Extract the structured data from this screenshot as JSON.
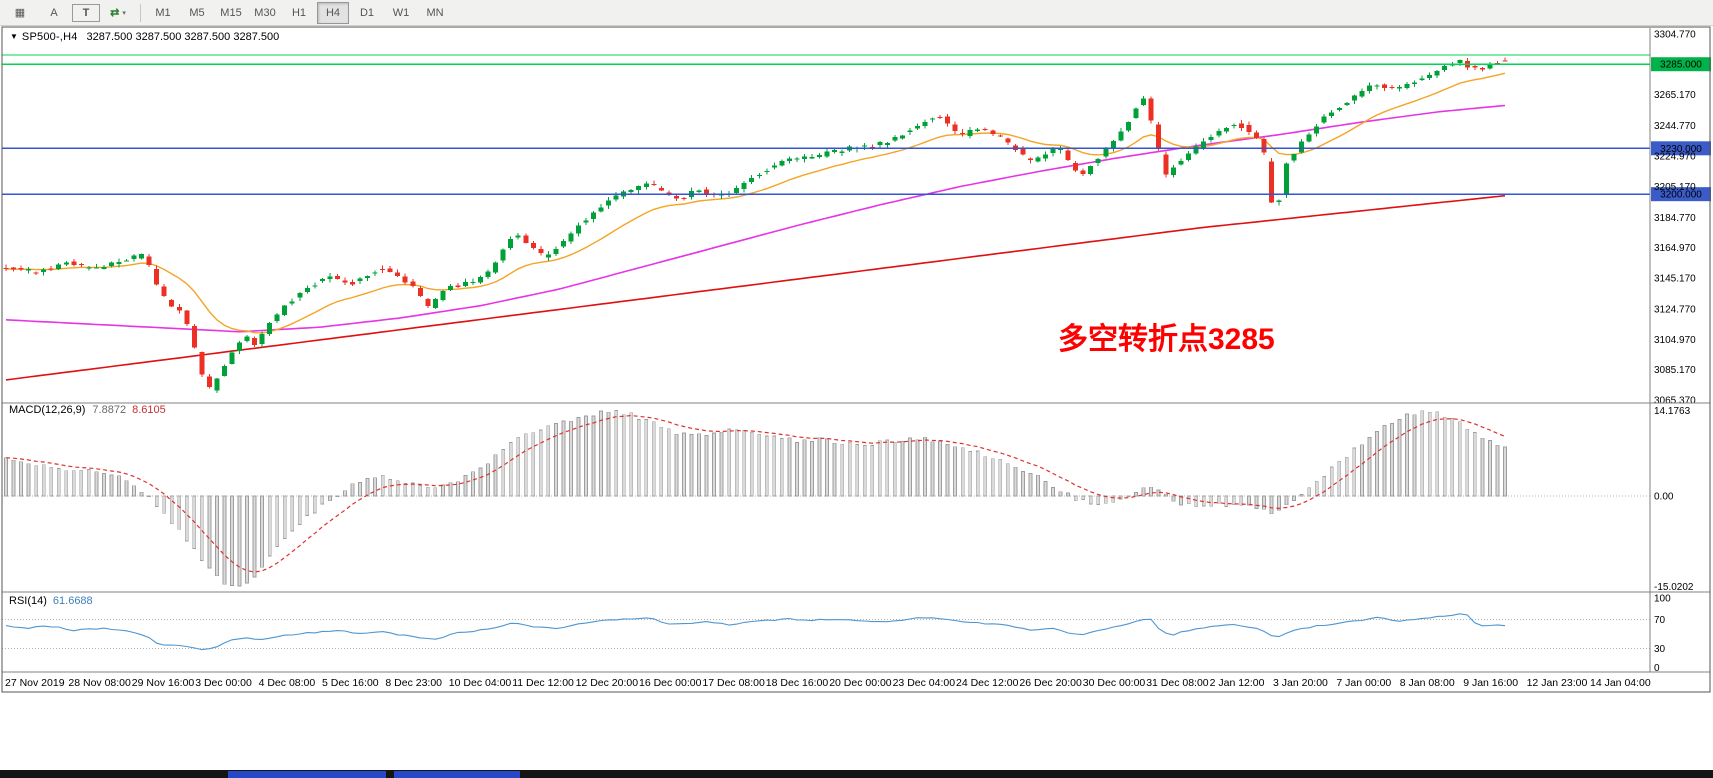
{
  "toolbar": {
    "tools": [
      {
        "name": "grid-icon",
        "glyph": "▦"
      },
      {
        "name": "cursor-a-tool",
        "glyph": "A"
      },
      {
        "name": "text-tool",
        "glyph": "T",
        "boxed": true
      },
      {
        "name": "cycle-tool",
        "glyph": "⇄",
        "caret": "▾"
      }
    ],
    "timeframes": [
      "M1",
      "M5",
      "M15",
      "M30",
      "H1",
      "H4",
      "D1",
      "W1",
      "MN"
    ],
    "active_timeframe": "H4"
  },
  "chart": {
    "collapse_glyph": "▼",
    "title_symbol": "SP500-,H4",
    "title_ohlc": "3287.500 3287.500 3287.500 3287.500",
    "annotation": "多空转折点3285"
  },
  "macd_panel": {
    "label": "MACD(12,26,9)",
    "value_macd": "7.8872",
    "value_signal": "8.6105",
    "axis_max": "14.1763",
    "axis_zero": "0.00",
    "axis_min": "-15.0202"
  },
  "rsi_panel": {
    "label": "RSI(14)",
    "value": "61.6688",
    "axis": [
      "100",
      "70",
      "30",
      "0"
    ]
  },
  "colors": {
    "up": "#00A138",
    "down": "#EC3024",
    "ma_fast": "#F5A423",
    "ma_mid": "#E535E5",
    "ma_slow": "#E01010",
    "macd_hist_fill": "#DADADA",
    "macd_hist_stroke": "#9E9E9E",
    "macd_signal": "#E03030",
    "rsi_line": "#4D96D2",
    "line_green": "#00D453",
    "line_blue": "#3355D4",
    "badge_green": "#00B24A",
    "badge_blue": "#3A5BC8",
    "separator": "#808080",
    "level_dotted": "#B4B4B4",
    "annotation": "#FF0000"
  },
  "chart_data": {
    "type": "candlestick",
    "symbol": "SP500-",
    "timeframe": "H4",
    "bars": 200,
    "price_min": 3065.37,
    "price_max": 3304.77,
    "last_close": 3287.5,
    "price_axis_ticks": [
      "3304.770",
      "3265.170",
      "3244.770",
      "3224.970",
      "3205.170",
      "3184.770",
      "3164.970",
      "3145.170",
      "3124.770",
      "3104.970",
      "3085.170",
      "3065.370"
    ],
    "hlines": [
      {
        "price": 3291.0,
        "color": "green"
      },
      {
        "price": 3285.0,
        "color": "green",
        "badge": "3285.000"
      },
      {
        "price": 3230.0,
        "color": "blue",
        "badge": "3230.000"
      },
      {
        "price": 3200.0,
        "color": "blue",
        "badge": "3200.000"
      }
    ],
    "price_path": [
      [
        0,
        3153
      ],
      [
        40,
        3149
      ],
      [
        70,
        3155
      ],
      [
        100,
        3151
      ],
      [
        130,
        3158
      ],
      [
        148,
        3160
      ],
      [
        160,
        3140
      ],
      [
        172,
        3128
      ],
      [
        186,
        3124
      ],
      [
        198,
        3098
      ],
      [
        208,
        3076
      ],
      [
        214,
        3072
      ],
      [
        222,
        3082
      ],
      [
        236,
        3096
      ],
      [
        248,
        3108
      ],
      [
        258,
        3100
      ],
      [
        272,
        3115
      ],
      [
        290,
        3128
      ],
      [
        310,
        3138
      ],
      [
        330,
        3147
      ],
      [
        352,
        3141
      ],
      [
        368,
        3146
      ],
      [
        385,
        3152
      ],
      [
        400,
        3146
      ],
      [
        415,
        3140
      ],
      [
        432,
        3126
      ],
      [
        448,
        3138
      ],
      [
        465,
        3141
      ],
      [
        480,
        3144
      ],
      [
        495,
        3151
      ],
      [
        508,
        3165
      ],
      [
        518,
        3174
      ],
      [
        532,
        3168
      ],
      [
        548,
        3158
      ],
      [
        565,
        3168
      ],
      [
        582,
        3180
      ],
      [
        600,
        3190
      ],
      [
        618,
        3198
      ],
      [
        636,
        3204
      ],
      [
        652,
        3207
      ],
      [
        668,
        3200
      ],
      [
        682,
        3196
      ],
      [
        700,
        3203
      ],
      [
        718,
        3199
      ],
      [
        736,
        3202
      ],
      [
        755,
        3211
      ],
      [
        775,
        3218
      ],
      [
        792,
        3223
      ],
      [
        812,
        3224
      ],
      [
        832,
        3227
      ],
      [
        852,
        3230
      ],
      [
        872,
        3231
      ],
      [
        892,
        3235
      ],
      [
        912,
        3241
      ],
      [
        930,
        3249
      ],
      [
        945,
        3251
      ],
      [
        962,
        3238
      ],
      [
        980,
        3243
      ],
      [
        1000,
        3239
      ],
      [
        1018,
        3230
      ],
      [
        1032,
        3221
      ],
      [
        1048,
        3226
      ],
      [
        1062,
        3231
      ],
      [
        1075,
        3218
      ],
      [
        1085,
        3211
      ],
      [
        1098,
        3222
      ],
      [
        1112,
        3230
      ],
      [
        1126,
        3242
      ],
      [
        1140,
        3258
      ],
      [
        1148,
        3263
      ],
      [
        1158,
        3240
      ],
      [
        1168,
        3212
      ],
      [
        1180,
        3220
      ],
      [
        1195,
        3228
      ],
      [
        1210,
        3236
      ],
      [
        1226,
        3243
      ],
      [
        1240,
        3246
      ],
      [
        1254,
        3241
      ],
      [
        1266,
        3232
      ],
      [
        1274,
        3196
      ],
      [
        1280,
        3188
      ],
      [
        1288,
        3218
      ],
      [
        1300,
        3230
      ],
      [
        1315,
        3242
      ],
      [
        1330,
        3252
      ],
      [
        1345,
        3258
      ],
      [
        1362,
        3266
      ],
      [
        1378,
        3272
      ],
      [
        1392,
        3268
      ],
      [
        1408,
        3271
      ],
      [
        1424,
        3276
      ],
      [
        1438,
        3280
      ],
      [
        1452,
        3285
      ],
      [
        1462,
        3289
      ],
      [
        1472,
        3283
      ],
      [
        1484,
        3281
      ],
      [
        1494,
        3286
      ],
      [
        1505,
        3287.5
      ]
    ],
    "ma_mid_path": [
      [
        0,
        3118
      ],
      [
        120,
        3114
      ],
      [
        240,
        3110
      ],
      [
        320,
        3113
      ],
      [
        400,
        3119
      ],
      [
        480,
        3127
      ],
      [
        560,
        3138
      ],
      [
        640,
        3152
      ],
      [
        720,
        3166
      ],
      [
        800,
        3180
      ],
      [
        880,
        3193
      ],
      [
        960,
        3205
      ],
      [
        1040,
        3215
      ],
      [
        1120,
        3224
      ],
      [
        1200,
        3232
      ],
      [
        1280,
        3239
      ],
      [
        1360,
        3247
      ],
      [
        1440,
        3254
      ],
      [
        1505,
        3258
      ]
    ],
    "ma_slow_path": [
      [
        0,
        3078
      ],
      [
        300,
        3103
      ],
      [
        600,
        3128
      ],
      [
        900,
        3153
      ],
      [
        1200,
        3178
      ],
      [
        1505,
        3199
      ]
    ],
    "macd": {
      "max": 14.1763,
      "min": -15.0202,
      "path": [
        [
          0,
          6.5
        ],
        [
          30,
          5.5
        ],
        [
          60,
          4.5
        ],
        [
          90,
          4
        ],
        [
          120,
          3
        ],
        [
          145,
          0.5
        ],
        [
          165,
          -3
        ],
        [
          185,
          -7
        ],
        [
          205,
          -11
        ],
        [
          225,
          -14.5
        ],
        [
          240,
          -15
        ],
        [
          255,
          -13
        ],
        [
          270,
          -10
        ],
        [
          285,
          -7
        ],
        [
          300,
          -4.5
        ],
        [
          315,
          -2.5
        ],
        [
          330,
          -0.5
        ],
        [
          345,
          1
        ],
        [
          360,
          2.5
        ],
        [
          375,
          3.2
        ],
        [
          390,
          3
        ],
        [
          405,
          2.2
        ],
        [
          420,
          1.6
        ],
        [
          435,
          1.4
        ],
        [
          450,
          2
        ],
        [
          465,
          3
        ],
        [
          480,
          4.5
        ],
        [
          495,
          6.5
        ],
        [
          510,
          8.5
        ],
        [
          525,
          10
        ],
        [
          540,
          11
        ],
        [
          555,
          12
        ],
        [
          570,
          12.5
        ],
        [
          585,
          13.2
        ],
        [
          600,
          13.8
        ],
        [
          615,
          14
        ],
        [
          630,
          13.5
        ],
        [
          645,
          12.5
        ],
        [
          660,
          11.5
        ],
        [
          675,
          10.5
        ],
        [
          690,
          10
        ],
        [
          705,
          10.2
        ],
        [
          720,
          10.8
        ],
        [
          735,
          11
        ],
        [
          750,
          10.5
        ],
        [
          765,
          10
        ],
        [
          780,
          9.5
        ],
        [
          800,
          9
        ],
        [
          820,
          9.3
        ],
        [
          840,
          8.8
        ],
        [
          860,
          8.2
        ],
        [
          880,
          8.8
        ],
        [
          900,
          9.3
        ],
        [
          920,
          9.6
        ],
        [
          940,
          9
        ],
        [
          960,
          8
        ],
        [
          980,
          7
        ],
        [
          1000,
          6
        ],
        [
          1020,
          4.5
        ],
        [
          1040,
          3
        ],
        [
          1060,
          1
        ],
        [
          1075,
          -0.5
        ],
        [
          1090,
          -1.2
        ],
        [
          1105,
          -1.4
        ],
        [
          1120,
          -0.5
        ],
        [
          1135,
          0.8
        ],
        [
          1150,
          1.5
        ],
        [
          1165,
          0
        ],
        [
          1180,
          -1.2
        ],
        [
          1200,
          -1.8
        ],
        [
          1220,
          -1.4
        ],
        [
          1240,
          -1.6
        ],
        [
          1260,
          -2.2
        ],
        [
          1275,
          -2.8
        ],
        [
          1290,
          -1
        ],
        [
          1305,
          1
        ],
        [
          1320,
          3
        ],
        [
          1335,
          5
        ],
        [
          1350,
          7
        ],
        [
          1365,
          9
        ],
        [
          1380,
          11
        ],
        [
          1395,
          12.5
        ],
        [
          1410,
          13.6
        ],
        [
          1425,
          14.1
        ],
        [
          1440,
          13.5
        ],
        [
          1455,
          12.5
        ],
        [
          1470,
          11
        ],
        [
          1485,
          9.5
        ],
        [
          1495,
          8.5
        ],
        [
          1505,
          7.9
        ]
      ]
    },
    "rsi": {
      "levels": [
        70,
        30
      ],
      "path": [
        [
          0,
          63
        ],
        [
          25,
          58
        ],
        [
          50,
          61
        ],
        [
          75,
          55
        ],
        [
          100,
          58
        ],
        [
          125,
          54
        ],
        [
          145,
          48
        ],
        [
          160,
          34
        ],
        [
          175,
          36
        ],
        [
          190,
          32
        ],
        [
          205,
          28
        ],
        [
          215,
          30
        ],
        [
          230,
          41
        ],
        [
          245,
          45
        ],
        [
          260,
          41
        ],
        [
          280,
          47
        ],
        [
          300,
          50
        ],
        [
          320,
          53
        ],
        [
          340,
          55
        ],
        [
          360,
          50
        ],
        [
          380,
          54
        ],
        [
          400,
          49
        ],
        [
          420,
          45
        ],
        [
          435,
          42
        ],
        [
          455,
          52
        ],
        [
          475,
          54
        ],
        [
          495,
          58
        ],
        [
          515,
          66
        ],
        [
          535,
          60
        ],
        [
          555,
          57
        ],
        [
          575,
          63
        ],
        [
          600,
          68
        ],
        [
          625,
          71
        ],
        [
          650,
          72
        ],
        [
          670,
          63
        ],
        [
          690,
          65
        ],
        [
          710,
          67
        ],
        [
          730,
          63
        ],
        [
          750,
          67
        ],
        [
          770,
          69
        ],
        [
          790,
          71
        ],
        [
          810,
          69
        ],
        [
          830,
          70
        ],
        [
          850,
          70
        ],
        [
          870,
          68
        ],
        [
          890,
          67
        ],
        [
          910,
          71
        ],
        [
          930,
          74
        ],
        [
          950,
          69
        ],
        [
          970,
          66
        ],
        [
          990,
          64
        ],
        [
          1010,
          62
        ],
        [
          1030,
          55
        ],
        [
          1050,
          59
        ],
        [
          1065,
          52
        ],
        [
          1080,
          48
        ],
        [
          1095,
          54
        ],
        [
          1110,
          58
        ],
        [
          1125,
          63
        ],
        [
          1140,
          70
        ],
        [
          1150,
          72
        ],
        [
          1160,
          55
        ],
        [
          1170,
          48
        ],
        [
          1185,
          54
        ],
        [
          1200,
          58
        ],
        [
          1215,
          61
        ],
        [
          1230,
          63
        ],
        [
          1245,
          61
        ],
        [
          1260,
          57
        ],
        [
          1275,
          44
        ],
        [
          1290,
          53
        ],
        [
          1305,
          58
        ],
        [
          1320,
          62
        ],
        [
          1335,
          64
        ],
        [
          1350,
          67
        ],
        [
          1365,
          70
        ],
        [
          1380,
          73
        ],
        [
          1395,
          67
        ],
        [
          1410,
          70
        ],
        [
          1425,
          72
        ],
        [
          1440,
          74
        ],
        [
          1455,
          77
        ],
        [
          1465,
          79
        ],
        [
          1475,
          66
        ],
        [
          1485,
          60
        ],
        [
          1495,
          63
        ],
        [
          1505,
          62
        ]
      ]
    },
    "time_labels": [
      "27 Nov 2019",
      "28 Nov 08:00",
      "29 Nov 16:00",
      "3 Dec 00:00",
      "4 Dec 08:00",
      "5 Dec 16:00",
      "8 Dec 23:00",
      "10 Dec 04:00",
      "11 Dec 12:00",
      "12 Dec 20:00",
      "16 Dec 00:00",
      "17 Dec 08:00",
      "18 Dec 16:00",
      "20 Dec 00:00",
      "23 Dec 04:00",
      "24 Dec 12:00",
      "26 Dec 20:00",
      "30 Dec 00:00",
      "31 Dec 08:00",
      "2 Jan 12:00",
      "3 Jan 20:00",
      "7 Jan 00:00",
      "8 Jan 08:00",
      "9 Jan 16:00",
      "12 Jan 23:00",
      "14 Jan 04:00"
    ]
  }
}
